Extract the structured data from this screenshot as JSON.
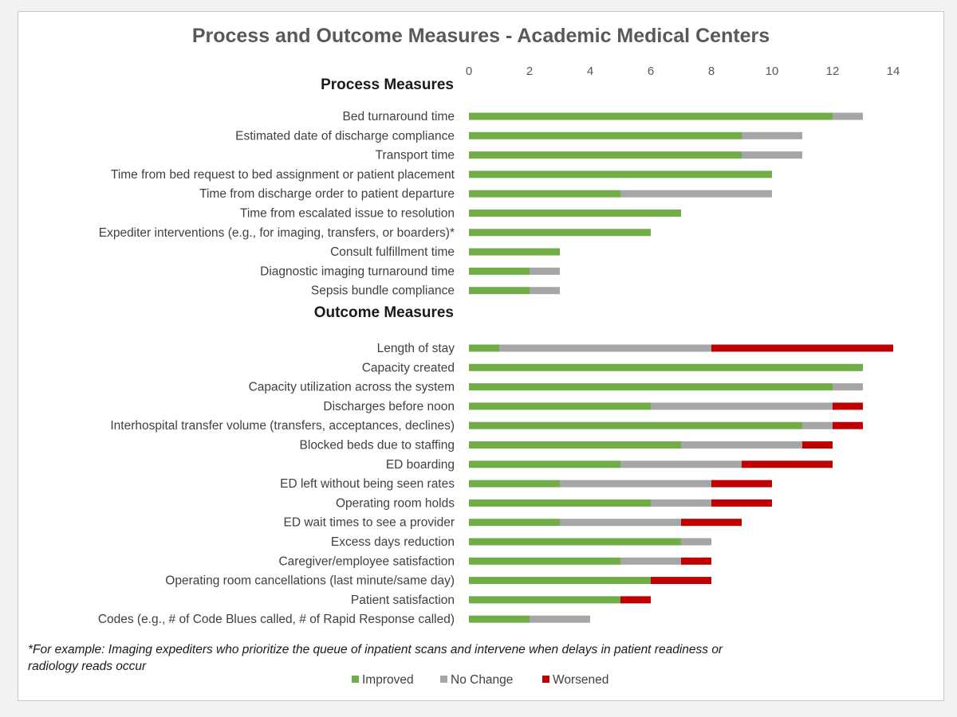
{
  "chart_data": {
    "type": "bar",
    "stacked": true,
    "orientation": "horizontal",
    "title": "Process and Outcome Measures - Academic Medical Centers",
    "xlim": [
      0,
      14
    ],
    "x_ticks": [
      "0",
      "2",
      "4",
      "6",
      "8",
      "10",
      "12",
      "14"
    ],
    "x_axis_position": "top",
    "grid": false,
    "legend_position": "bottom",
    "colors": {
      "Improved": "#70ad47",
      "No Change": "#a6a6a6",
      "Worsened": "#c00000"
    },
    "series_names": [
      "Improved",
      "No Change",
      "Worsened"
    ],
    "sections": [
      {
        "label": "Process Measures",
        "categories": [
          "Bed turnaround time",
          "Estimated date of discharge compliance",
          "Transport time",
          "Time from bed request to bed assignment or patient placement",
          "Time from discharge order to patient departure",
          "Time from escalated issue to resolution",
          "Expediter interventions (e.g., for imaging, transfers, or boarders)*",
          "Consult fulfillment time",
          "Diagnostic imaging turnaround time",
          "Sepsis bundle compliance"
        ],
        "series": [
          {
            "name": "Improved",
            "values": [
              12,
              9,
              9,
              10,
              5,
              7,
              6,
              3,
              2,
              2
            ]
          },
          {
            "name": "No Change",
            "values": [
              1,
              2,
              2,
              0,
              5,
              0,
              0,
              0,
              1,
              1
            ]
          },
          {
            "name": "Worsened",
            "values": [
              0,
              0,
              0,
              0,
              0,
              0,
              0,
              0,
              0,
              0
            ]
          }
        ]
      },
      {
        "label": "Outcome Measures",
        "categories": [
          "Length of stay",
          "Capacity created",
          "Capacity utilization across the system",
          "Discharges before noon",
          "Interhospital transfer volume (transfers, acceptances, declines)",
          "Blocked beds due to staffing",
          "ED boarding",
          "ED left without being seen rates",
          "Operating room holds",
          "ED wait times to see a provider",
          "Excess days reduction",
          "Caregiver/employee satisfaction",
          "Operating room cancellations (last minute/same day)",
          "Patient satisfaction",
          "Codes (e.g., # of Code Blues called, # of Rapid Response called)"
        ],
        "series": [
          {
            "name": "Improved",
            "values": [
              1,
              13,
              12,
              6,
              11,
              7,
              5,
              3,
              6,
              3,
              7,
              5,
              6,
              5,
              2
            ]
          },
          {
            "name": "No Change",
            "values": [
              7,
              0,
              1,
              6,
              1,
              4,
              4,
              5,
              2,
              4,
              1,
              2,
              0,
              0,
              2
            ]
          },
          {
            "name": "Worsened",
            "values": [
              6,
              0,
              0,
              1,
              1,
              1,
              3,
              2,
              2,
              2,
              0,
              1,
              2,
              1,
              0
            ]
          }
        ]
      }
    ],
    "footnote": [
      "*For example: Imaging expediters who prioritize the queue of inpatient scans and intervene when delays in patient readiness or",
      "radiology reads occur"
    ]
  }
}
